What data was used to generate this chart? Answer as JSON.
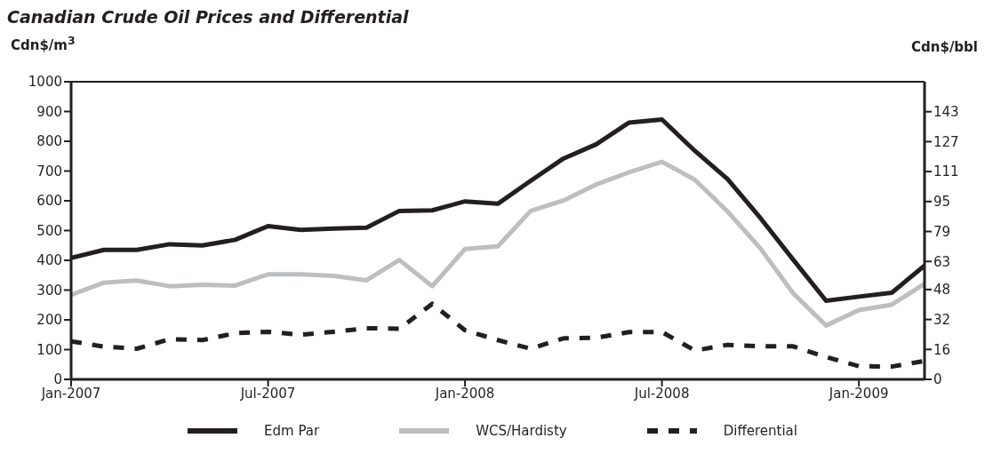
{
  "chart_data": {
    "type": "line",
    "title": "Canadian Crude Oil Prices and Differential",
    "ylabel": "Cdn$/m$^{3}$",
    "y2label": "Cdn$/bbl",
    "x": [
      "2007-01",
      "2007-02",
      "2007-03",
      "2007-04",
      "2007-05",
      "2007-06",
      "2007-07",
      "2007-08",
      "2007-09",
      "2007-10",
      "2007-11",
      "2007-12",
      "2008-01",
      "2008-02",
      "2008-03",
      "2008-04",
      "2008-05",
      "2008-06",
      "2008-07",
      "2008-08",
      "2008-09",
      "2008-10",
      "2008-11",
      "2008-12",
      "2009-01",
      "2009-02",
      "2009-03"
    ],
    "series": [
      {
        "name": "Edm Par",
        "color": "#231f20",
        "line_style": "solid",
        "values": [
          408,
          435,
          435,
          454,
          450,
          469,
          515,
          502,
          507,
          510,
          566,
          568,
          598,
          590,
          667,
          742,
          790,
          863,
          873,
          768,
          673,
          542,
          402,
          264,
          278,
          291,
          382
        ]
      },
      {
        "name": "WCS/Hardisty",
        "color": "#bcbec0",
        "line_style": "solid",
        "values": [
          284,
          325,
          332,
          313,
          318,
          315,
          353,
          353,
          348,
          333,
          401,
          313,
          438,
          447,
          566,
          601,
          655,
          696,
          731,
          671,
          564,
          440,
          289,
          181,
          233,
          251,
          321
        ]
      },
      {
        "name": "Differential",
        "color": "#231f20",
        "line_style": "dashed",
        "values": [
          128,
          110,
          103,
          135,
          132,
          155,
          160,
          150,
          160,
          172,
          170,
          254,
          165,
          132,
          103,
          138,
          140,
          159,
          159,
          97,
          116,
          111,
          111,
          75,
          44,
          43,
          62
        ]
      }
    ],
    "xlim": [
      "2007-01",
      "2009-03"
    ],
    "xticks": [
      {
        "value": "2007-01",
        "label": "Jan-2007"
      },
      {
        "value": "2007-07",
        "label": "Jul-2007"
      },
      {
        "value": "2008-01",
        "label": "Jan-2008"
      },
      {
        "value": "2008-07",
        "label": "Jul-2008"
      },
      {
        "value": "2009-01",
        "label": "Jan-2009"
      }
    ],
    "ylim": [
      0,
      1000
    ],
    "yticks": [
      0,
      100,
      200,
      300,
      400,
      500,
      600,
      700,
      800,
      900,
      1000
    ],
    "y2lim": [
      0,
      159
    ],
    "y2ticks": [
      0,
      16,
      32,
      48,
      63,
      79,
      95,
      111,
      127,
      143
    ],
    "legend": "bottom",
    "marker": "none"
  }
}
